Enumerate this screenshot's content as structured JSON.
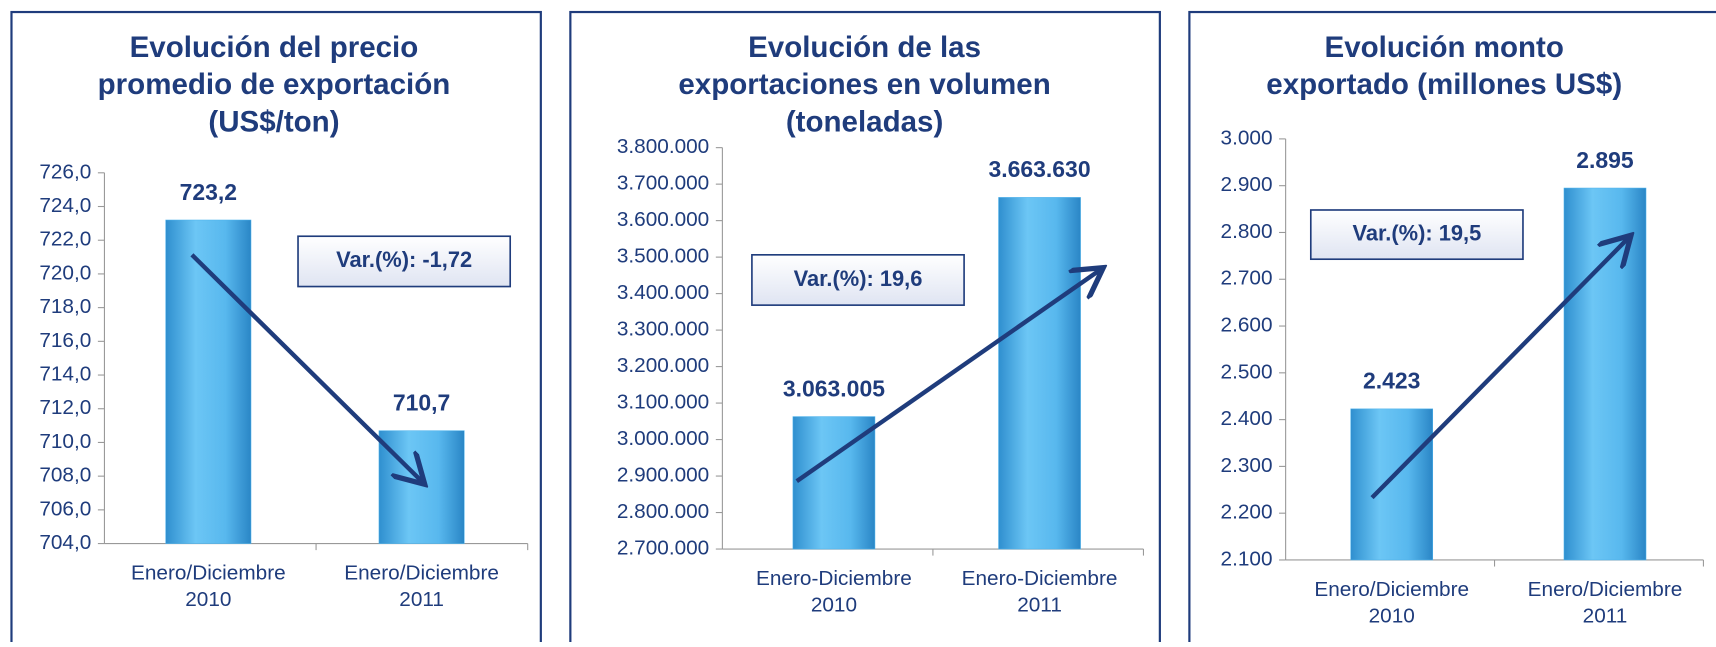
{
  "chart_data": [
    {
      "type": "bar",
      "title": [
        "Evolución del precio",
        "promedio de exportación",
        "(US$/ton)"
      ],
      "categories": [
        [
          "Enero/Diciembre",
          "2010"
        ],
        [
          "Enero/Diciembre",
          "2011"
        ]
      ],
      "values": [
        723.2,
        710.7
      ],
      "value_labels": [
        "723,2",
        "710,7"
      ],
      "color": "#4fb3ec",
      "ylim": [
        704,
        726
      ],
      "yticks": [
        {
          "value": 704,
          "label": "704,0"
        },
        {
          "value": 706,
          "label": "706,0"
        },
        {
          "value": 708,
          "label": "708,0"
        },
        {
          "value": 710,
          "label": "710,0"
        },
        {
          "value": 712,
          "label": "712,0"
        },
        {
          "value": 714,
          "label": "714,0"
        },
        {
          "value": 716,
          "label": "716,0"
        },
        {
          "value": 718,
          "label": "718,0"
        },
        {
          "value": 720,
          "label": "720,0"
        },
        {
          "value": 722,
          "label": "722,0"
        },
        {
          "value": 724,
          "label": "724,0"
        },
        {
          "value": 726,
          "label": "726,0"
        }
      ],
      "annotation": "Var.(%): -1,72"
    },
    {
      "type": "bar",
      "title": [
        "Evolución de las",
        "exportaciones en volumen",
        "(toneladas)"
      ],
      "categories": [
        [
          "Enero-Diciembre",
          "2010"
        ],
        [
          "Enero-Diciembre",
          "2011"
        ]
      ],
      "values": [
        3063005,
        3663630
      ],
      "value_labels": [
        "3.063.005",
        "3.663.630"
      ],
      "color": "#4fb3ec",
      "ylim": [
        2700000,
        3800000
      ],
      "yticks": [
        {
          "value": 2700000,
          "label": "2.700.000"
        },
        {
          "value": 2800000,
          "label": "2.800.000"
        },
        {
          "value": 2900000,
          "label": "2.900.000"
        },
        {
          "value": 3000000,
          "label": "3.000.000"
        },
        {
          "value": 3100000,
          "label": "3.100.000"
        },
        {
          "value": 3200000,
          "label": "3.200.000"
        },
        {
          "value": 3300000,
          "label": "3.300.000"
        },
        {
          "value": 3400000,
          "label": "3.400.000"
        },
        {
          "value": 3500000,
          "label": "3.500.000"
        },
        {
          "value": 3600000,
          "label": "3.600.000"
        },
        {
          "value": 3700000,
          "label": "3.700.000"
        },
        {
          "value": 3800000,
          "label": "3.800.000"
        }
      ],
      "annotation": "Var.(%): 19,6"
    },
    {
      "type": "bar",
      "title": [
        "Evolución monto",
        "exportado (millones US$)"
      ],
      "categories": [
        [
          "Enero/Diciembre",
          "2010"
        ],
        [
          "Enero/Diciembre",
          "2011"
        ]
      ],
      "values": [
        2423,
        2895
      ],
      "value_labels": [
        "2.423",
        "2.895"
      ],
      "color": "#4fb3ec",
      "ylim": [
        2100,
        3000
      ],
      "yticks": [
        {
          "value": 2100,
          "label": "2.100"
        },
        {
          "value": 2200,
          "label": "2.200"
        },
        {
          "value": 2300,
          "label": "2.300"
        },
        {
          "value": 2400,
          "label": "2.400"
        },
        {
          "value": 2500,
          "label": "2.500"
        },
        {
          "value": 2600,
          "label": "2.600"
        },
        {
          "value": 2700,
          "label": "2.700"
        },
        {
          "value": 2800,
          "label": "2.800"
        },
        {
          "value": 2900,
          "label": "2.900"
        },
        {
          "value": 3000,
          "label": "3.000"
        }
      ],
      "annotation": "Var.(%): 19,5"
    }
  ]
}
